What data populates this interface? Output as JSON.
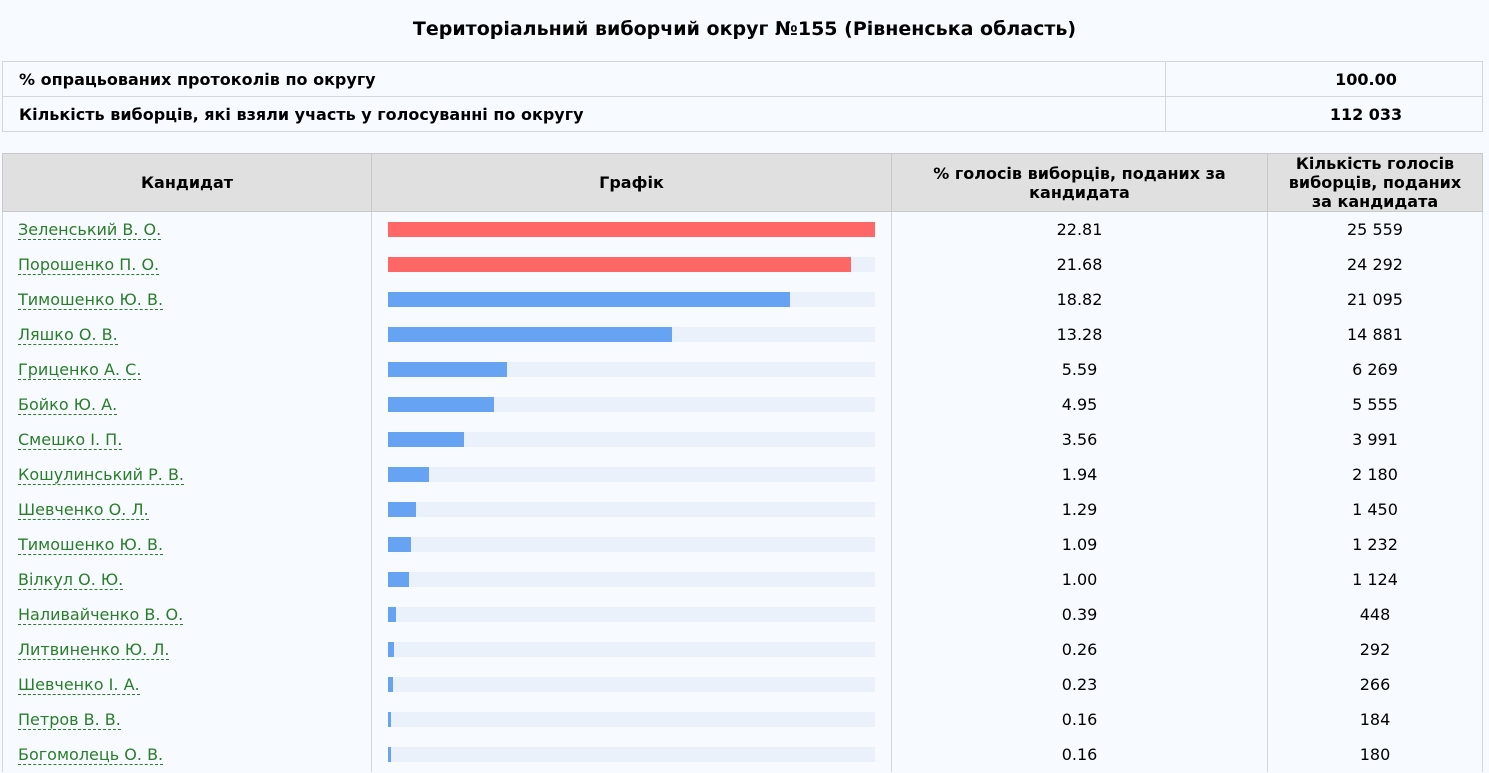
{
  "title": "Територіальний виборчий округ №155 (Рівненська область)",
  "summary": [
    {
      "label": "% опрацьованих протоколів по округу",
      "value": "100.00"
    },
    {
      "label": "Кількість виборців, які взяли участь у голосуванні по округу",
      "value": "112 033"
    }
  ],
  "table": {
    "headers": {
      "candidate": "Кандидат",
      "chart": "Графік",
      "percent": "% голосів виборців, поданих за кандидата",
      "votes": "Кількість голосів виборців, поданих за кандидата"
    },
    "colors": {
      "leader": "#ff6666",
      "other": "#66a3f2",
      "track": "#eaf1fb"
    },
    "max_percent": 22.81,
    "rows": [
      {
        "name": "Зеленський В. О.",
        "percent": "22.81",
        "votes": "25 559",
        "leader": true
      },
      {
        "name": "Порошенко П. О.",
        "percent": "21.68",
        "votes": "24 292",
        "leader": true
      },
      {
        "name": "Тимошенко Ю. В.",
        "percent": "18.82",
        "votes": "21 095",
        "leader": false
      },
      {
        "name": "Ляшко О. В.",
        "percent": "13.28",
        "votes": "14 881",
        "leader": false
      },
      {
        "name": "Гриценко А. С.",
        "percent": "5.59",
        "votes": "6 269",
        "leader": false
      },
      {
        "name": "Бойко Ю. А.",
        "percent": "4.95",
        "votes": "5 555",
        "leader": false
      },
      {
        "name": "Смешко І. П.",
        "percent": "3.56",
        "votes": "3 991",
        "leader": false
      },
      {
        "name": "Кошулинський Р. В.",
        "percent": "1.94",
        "votes": "2 180",
        "leader": false
      },
      {
        "name": "Шевченко О. Л.",
        "percent": "1.29",
        "votes": "1 450",
        "leader": false
      },
      {
        "name": "Тимошенко Ю. В.",
        "percent": "1.09",
        "votes": "1 232",
        "leader": false
      },
      {
        "name": "Вілкул О. Ю.",
        "percent": "1.00",
        "votes": "1 124",
        "leader": false
      },
      {
        "name": "Наливайченко В. О.",
        "percent": "0.39",
        "votes": "448",
        "leader": false
      },
      {
        "name": "Литвиненко Ю. Л.",
        "percent": "0.26",
        "votes": "292",
        "leader": false
      },
      {
        "name": "Шевченко І. А.",
        "percent": "0.23",
        "votes": "266",
        "leader": false
      },
      {
        "name": "Петров В. В.",
        "percent": "0.16",
        "votes": "184",
        "leader": false
      },
      {
        "name": "Богомолець О. В.",
        "percent": "0.16",
        "votes": "180",
        "leader": false
      }
    ]
  }
}
